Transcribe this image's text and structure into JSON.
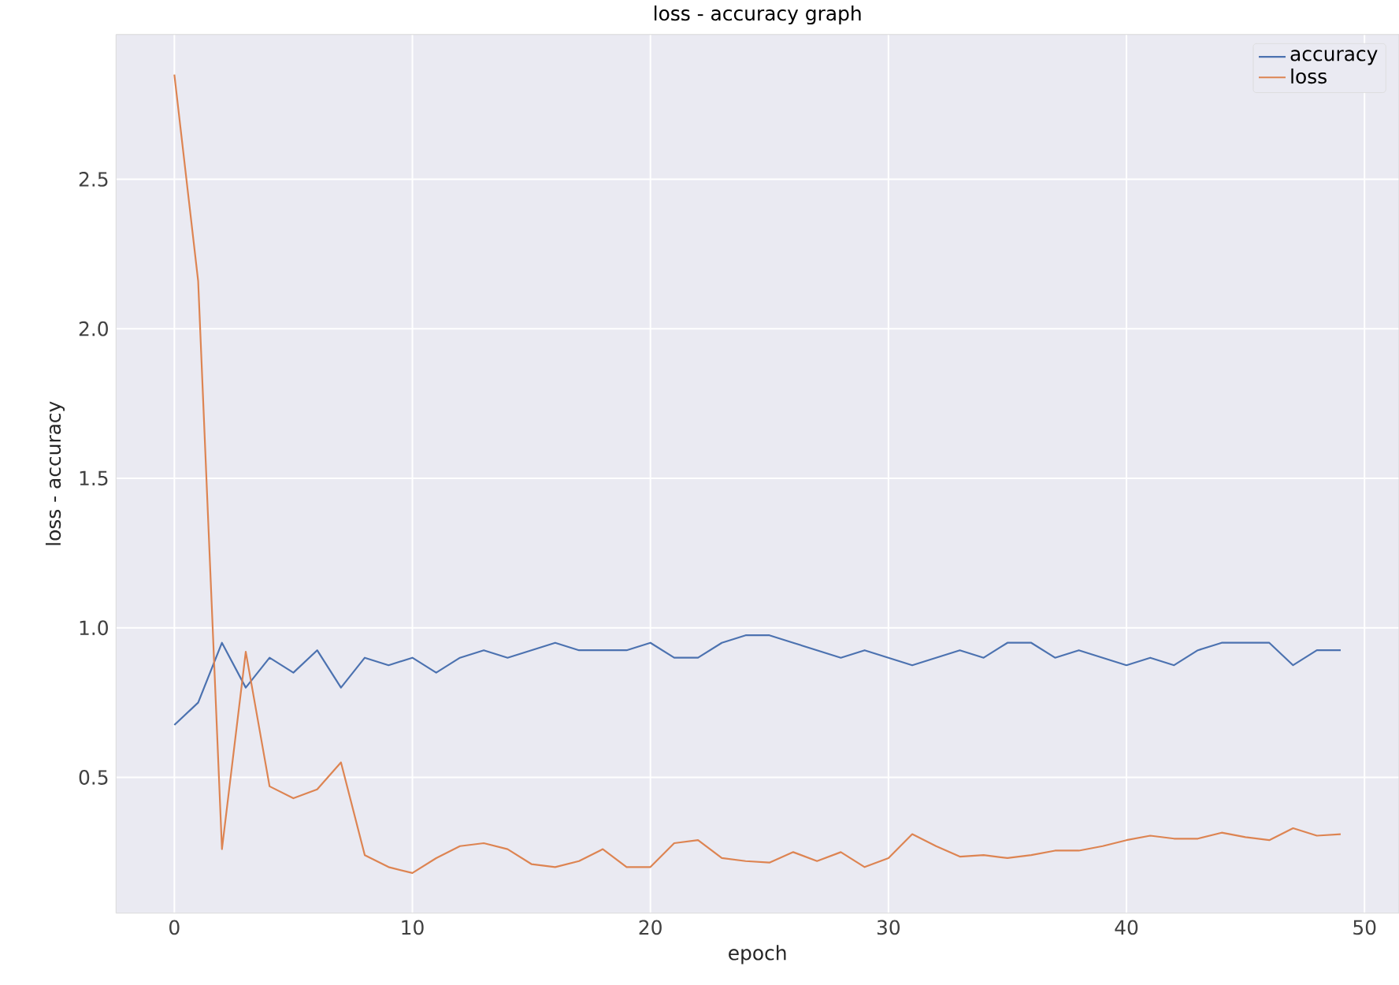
{
  "chart_data": {
    "type": "line",
    "title": "loss - accuracy graph",
    "xlabel": "epoch",
    "ylabel": "loss - accuracy",
    "x": [
      0,
      1,
      2,
      3,
      4,
      5,
      6,
      7,
      8,
      9,
      10,
      11,
      12,
      13,
      14,
      15,
      16,
      17,
      18,
      19,
      20,
      21,
      22,
      23,
      24,
      25,
      26,
      27,
      28,
      29,
      30,
      31,
      32,
      33,
      34,
      35,
      36,
      37,
      38,
      39,
      40,
      41,
      42,
      43,
      44,
      45,
      46,
      47,
      48,
      49
    ],
    "series": [
      {
        "name": "accuracy",
        "color": "#4c72b0",
        "values": [
          0.675,
          0.75,
          0.95,
          0.8,
          0.9,
          0.85,
          0.925,
          0.8,
          0.9,
          0.875,
          0.9,
          0.85,
          0.9,
          0.925,
          0.9,
          0.925,
          0.95,
          0.925,
          0.925,
          0.925,
          0.95,
          0.9,
          0.9,
          0.95,
          0.975,
          0.975,
          0.95,
          0.925,
          0.9,
          0.925,
          0.9,
          0.875,
          0.9,
          0.925,
          0.9,
          0.95,
          0.95,
          0.9,
          0.925,
          0.9,
          0.875,
          0.9,
          0.875,
          0.925,
          0.95,
          0.95,
          0.95,
          0.875,
          0.925,
          0.925
        ]
      },
      {
        "name": "loss",
        "color": "#dd8452",
        "values": [
          2.85,
          2.16,
          0.26,
          0.92,
          0.47,
          0.43,
          0.46,
          0.55,
          0.24,
          0.2,
          0.18,
          0.23,
          0.27,
          0.28,
          0.26,
          0.21,
          0.2,
          0.22,
          0.26,
          0.2,
          0.2,
          0.28,
          0.29,
          0.23,
          0.22,
          0.215,
          0.25,
          0.22,
          0.25,
          0.2,
          0.23,
          0.31,
          0.27,
          0.235,
          0.24,
          0.23,
          0.24,
          0.255,
          0.255,
          0.27,
          0.29,
          0.305,
          0.295,
          0.295,
          0.315,
          0.3,
          0.29,
          0.33,
          0.305,
          0.31
        ]
      }
    ],
    "xlim": [
      -2.45,
      51.45
    ],
    "ylim": [
      0.046,
      2.984
    ],
    "xticks": [
      0,
      10,
      20,
      30,
      40,
      50
    ],
    "yticks": [
      0.5,
      {
        "value": 1,
        "label": "1.0"
      },
      1.5,
      {
        "value": 2,
        "label": "2.0"
      },
      2.5
    ],
    "grid": true,
    "legend": "top right",
    "marker": "none",
    "line_style": "solid"
  }
}
